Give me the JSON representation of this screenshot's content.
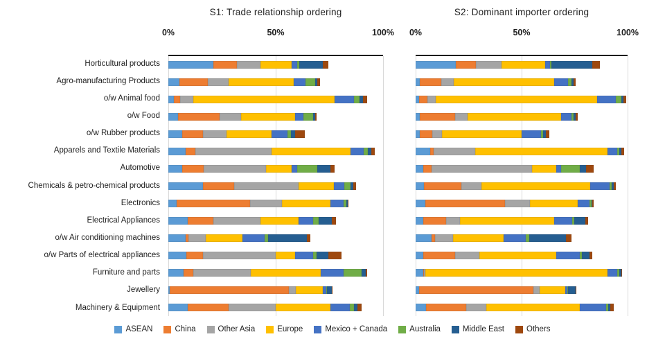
{
  "chart_data": [
    {
      "type": "bar",
      "orientation": "horizontal",
      "stacked": true,
      "title": "S1: Trade relationship ordering",
      "xlim": [
        0,
        100
      ],
      "xticks": [
        {
          "label": "0%",
          "value": 0
        },
        {
          "label": "50%",
          "value": 50
        },
        {
          "label": "100%",
          "value": 100
        }
      ],
      "grid": "vertical-light",
      "categories": [
        "Horticultural products",
        "Agro-manufacturing Products",
        "o/w Animal food",
        "o/w Food",
        "o/w Rubber products",
        "Apparels and Textile Materials",
        "Automotive",
        "Chemicals & petro-chemical products",
        "Electronics",
        "Electrical Appliances",
        "o/w Air conditioning machines",
        "o/w Parts of electrical appliances",
        "Furniture and parts",
        "Jewellery",
        "Machinery & Equipment"
      ],
      "series": [
        {
          "name": "ASEAN",
          "color": "#5B9BD5",
          "values": [
            21,
            5,
            2.5,
            4.5,
            6.5,
            8,
            6.5,
            16,
            4,
            9,
            8,
            8.5,
            7,
            0.5,
            9
          ]
        },
        {
          "name": "China",
          "color": "#ED7D31",
          "values": [
            11,
            13.5,
            3,
            19.5,
            9.5,
            4.5,
            10,
            14.5,
            34,
            12,
            1.5,
            7.5,
            4.5,
            55.5,
            19
          ]
        },
        {
          "name": "Other Asia",
          "color": "#A5A5A5",
          "values": [
            11,
            9.5,
            6,
            10,
            11,
            35.5,
            29,
            30,
            15,
            22,
            8,
            34,
            27,
            3.5,
            22
          ]
        },
        {
          "name": "Europe",
          "color": "#FFC000",
          "values": [
            14.5,
            30.5,
            66,
            25,
            21,
            37,
            12,
            16.5,
            22.5,
            17.5,
            17,
            9,
            32.5,
            12.5,
            25.5
          ]
        },
        {
          "name": "Mexico + Canada",
          "color": "#4472C4",
          "values": [
            2.5,
            5.5,
            9,
            4,
            7.5,
            6,
            2.5,
            5,
            6,
            7,
            10.5,
            8.5,
            10.5,
            1.5,
            9
          ]
        },
        {
          "name": "Australia",
          "color": "#70AD47",
          "values": [
            1,
            4.5,
            2.5,
            4.5,
            1.5,
            2,
            9.5,
            3,
            1.5,
            2.5,
            1.5,
            1.5,
            8.5,
            0.5,
            2
          ]
        },
        {
          "name": "Middle East",
          "color": "#255E91",
          "values": [
            11,
            1,
            1.5,
            1,
            2,
            1.5,
            6,
            1,
            0.5,
            6,
            18,
            5.5,
            2,
            2,
            1.5
          ]
        },
        {
          "name": "Others",
          "color": "#9E480E",
          "values": [
            2.5,
            1,
            2,
            0.5,
            4.5,
            1.5,
            2,
            1.5,
            0.5,
            2,
            1.5,
            6,
            0.5,
            0.5,
            2
          ]
        }
      ]
    },
    {
      "type": "bar",
      "orientation": "horizontal",
      "stacked": true,
      "title": "S2: Dominant importer ordering",
      "xlim": [
        0,
        100
      ],
      "xticks": [
        {
          "label": "0%",
          "value": 0
        },
        {
          "label": "50%",
          "value": 50
        },
        {
          "label": "100%",
          "value": 100
        }
      ],
      "grid": "vertical-light",
      "categories": [
        "Horticultural products",
        "Agro-manufacturing Products",
        "o/w Animal food",
        "o/w Food",
        "o/w Rubber products",
        "Apparels and Textile Materials",
        "Automotive",
        "Chemicals & petro-chemical products",
        "Electronics",
        "Electrical Appliances",
        "o/w Air conditioning machines",
        "o/w Parts of electrical appliances",
        "Furniture and parts",
        "Jewellery",
        "Machinery & Equipment"
      ],
      "series": [
        {
          "name": "ASEAN",
          "color": "#5B9BD5",
          "values": [
            19,
            2,
            1.5,
            2,
            2,
            7,
            3.5,
            4,
            4.5,
            3.5,
            7.5,
            3.5,
            3.5,
            1.5,
            5
          ]
        },
        {
          "name": "China",
          "color": "#ED7D31",
          "values": [
            9.5,
            10,
            4,
            16.5,
            6,
            1.5,
            4,
            17.5,
            37.5,
            11,
            1.5,
            15,
            0.5,
            54,
            19
          ]
        },
        {
          "name": "Other Asia",
          "color": "#A5A5A5",
          "values": [
            12,
            6,
            4,
            6,
            4.5,
            19.5,
            47.5,
            9.5,
            12,
            6.5,
            8.5,
            11.5,
            0.5,
            3,
            9.5
          ]
        },
        {
          "name": "Europe",
          "color": "#FFC000",
          "values": [
            20.5,
            47.5,
            76,
            44,
            37.5,
            62.5,
            11.5,
            51.5,
            22.5,
            44.5,
            24,
            36.5,
            86,
            12,
            44
          ]
        },
        {
          "name": "Mexico + Canada",
          "color": "#4472C4",
          "values": [
            2.5,
            6.5,
            9,
            5,
            9,
            4.5,
            2,
            9,
            5.5,
            8.5,
            10.5,
            11,
            4.5,
            1,
            12.5
          ]
        },
        {
          "name": "Australia",
          "color": "#70AD47",
          "values": [
            0.5,
            1.5,
            2.5,
            1,
            1,
            1,
            9,
            1,
            1,
            1,
            1.5,
            1,
            1,
            0.5,
            1
          ]
        },
        {
          "name": "Middle East",
          "color": "#255E91",
          "values": [
            19.5,
            1,
            1,
            1,
            1.5,
            1,
            3,
            1,
            0.5,
            5,
            17.5,
            3.5,
            1,
            3.5,
            1
          ]
        },
        {
          "name": "Others",
          "color": "#9E480E",
          "values": [
            3.5,
            1,
            1.5,
            1,
            1.5,
            1.5,
            3.5,
            1,
            0.5,
            1.5,
            2.5,
            1.5,
            0.5,
            0.5,
            1.5
          ]
        }
      ]
    }
  ],
  "legend_position": "bottom-center",
  "colors": {
    "gridline": "#d9d9d9",
    "axis_line": "#000000",
    "text": "#1f1f1f"
  }
}
